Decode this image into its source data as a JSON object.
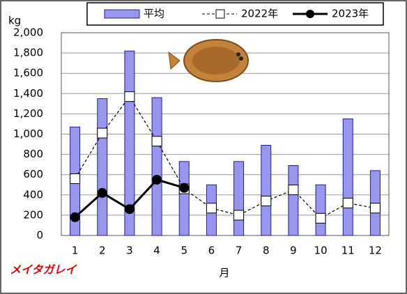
{
  "chart_data": {
    "type": "bar_line",
    "y_unit": "kg",
    "x_label": "月",
    "species": "メイタガレイ",
    "categories": [
      "1",
      "2",
      "3",
      "4",
      "5",
      "6",
      "7",
      "8",
      "9",
      "10",
      "11",
      "12"
    ],
    "series": [
      {
        "name": "平均",
        "type": "bar",
        "color": "#9696ec",
        "values": [
          1070,
          1350,
          1820,
          1360,
          730,
          500,
          730,
          890,
          690,
          500,
          1150,
          640
        ]
      },
      {
        "name": "2022年",
        "type": "line",
        "color": "#000000",
        "values": [
          560,
          1010,
          1370,
          930,
          460,
          270,
          200,
          340,
          450,
          170,
          320,
          270
        ]
      },
      {
        "name": "2023年",
        "type": "line",
        "color": "#000000",
        "values": [
          180,
          420,
          260,
          550,
          470,
          null,
          null,
          null,
          null,
          null,
          null,
          null
        ]
      }
    ],
    "ylim": [
      0,
      2000
    ],
    "yticks": [
      0,
      200,
      400,
      600,
      800,
      {
        "value": 1000,
        "label": "1,000"
      },
      {
        "value": 1200,
        "label": "1,200"
      },
      {
        "value": 1400,
        "label": "1,400"
      },
      {
        "value": 1600,
        "label": "1,600"
      },
      {
        "value": 1800,
        "label": "1,800"
      },
      {
        "value": 2000,
        "label": "2,000"
      }
    ],
    "grid": true
  }
}
